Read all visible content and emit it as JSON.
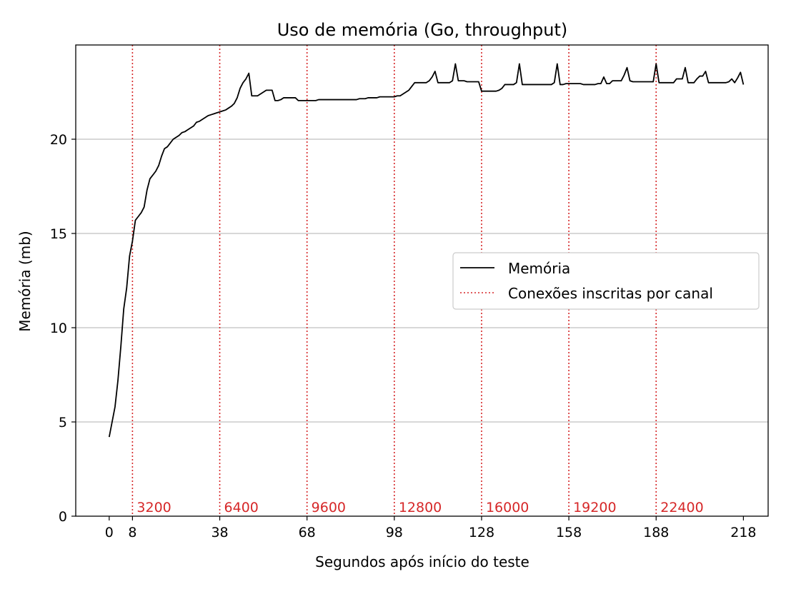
{
  "chart_data": {
    "type": "line",
    "title": "Uso de memória (Go, throughput)",
    "xlabel": "Segundos após início do teste",
    "ylabel": "Memória (mb)",
    "xlim": [
      -11.5,
      226.5
    ],
    "ylim": [
      0,
      25
    ],
    "x_ticks": [
      0,
      8,
      38,
      68,
      98,
      128,
      158,
      188,
      218
    ],
    "y_ticks": [
      0,
      5,
      10,
      15,
      20
    ],
    "grid": "horizontal",
    "legend_position": "center-right",
    "legend": [
      "Memória",
      "Conexões inscritas por canal"
    ],
    "colors": {
      "series": "#000000",
      "markers": "#d62728",
      "grid": "#b0b0b0"
    },
    "series": [
      {
        "name": "Memória",
        "x": [
          0,
          1,
          2,
          3,
          4,
          5,
          6,
          7,
          8,
          9,
          10,
          11,
          12,
          13,
          14,
          15,
          16,
          17,
          18,
          19,
          20,
          21,
          22,
          23,
          24,
          25,
          26,
          27,
          28,
          29,
          30,
          31,
          32,
          33,
          34,
          35,
          36,
          37,
          38,
          39,
          40,
          41,
          42,
          43,
          44,
          45,
          46,
          47,
          48,
          49,
          50,
          51,
          52,
          53,
          54,
          55,
          56,
          57,
          58,
          59,
          60,
          61,
          62,
          63,
          64,
          65,
          66,
          67,
          68,
          69,
          70,
          71,
          72,
          73,
          74,
          75,
          76,
          77,
          78,
          79,
          80,
          81,
          82,
          83,
          84,
          85,
          86,
          87,
          88,
          89,
          90,
          91,
          92,
          93,
          94,
          95,
          96,
          97,
          98,
          99,
          100,
          101,
          102,
          103,
          104,
          105,
          106,
          107,
          108,
          109,
          110,
          111,
          112,
          113,
          114,
          115,
          116,
          117,
          118,
          119,
          120,
          121,
          122,
          123,
          124,
          125,
          126,
          127,
          128,
          129,
          130,
          131,
          132,
          133,
          134,
          135,
          136,
          137,
          138,
          139,
          140,
          141,
          142,
          143,
          144,
          145,
          146,
          147,
          148,
          149,
          150,
          151,
          152,
          153,
          154,
          155,
          156,
          157,
          158,
          159,
          160,
          161,
          162,
          163,
          164,
          165,
          166,
          167,
          168,
          169,
          170,
          171,
          172,
          173,
          174,
          175,
          176,
          177,
          178,
          179,
          180,
          181,
          182,
          183,
          184,
          185,
          186,
          187,
          188,
          189,
          190,
          191,
          192,
          193,
          194,
          195,
          196,
          197,
          198,
          199,
          200,
          201,
          202,
          203,
          204,
          205,
          206,
          207,
          208,
          209,
          210,
          211,
          212,
          213,
          214,
          215,
          216,
          217,
          218
        ],
        "values": [
          4.2,
          5.0,
          5.8,
          7.2,
          9.0,
          11.0,
          12.1,
          13.8,
          14.6,
          15.7,
          15.9,
          16.1,
          16.4,
          17.3,
          17.9,
          18.1,
          18.3,
          18.6,
          19.1,
          19.5,
          19.6,
          19.8,
          20.0,
          20.1,
          20.2,
          20.35,
          20.4,
          20.5,
          20.6,
          20.7,
          20.9,
          20.95,
          21.05,
          21.15,
          21.25,
          21.3,
          21.35,
          21.4,
          21.45,
          21.5,
          21.55,
          21.65,
          21.75,
          21.9,
          22.2,
          22.7,
          23.0,
          23.2,
          23.5,
          22.3,
          22.3,
          22.3,
          22.4,
          22.5,
          22.6,
          22.6,
          22.6,
          22.05,
          22.05,
          22.1,
          22.2,
          22.2,
          22.2,
          22.2,
          22.2,
          22.05,
          22.05,
          22.05,
          22.05,
          22.05,
          22.05,
          22.05,
          22.1,
          22.1,
          22.1,
          22.1,
          22.1,
          22.1,
          22.1,
          22.1,
          22.1,
          22.1,
          22.1,
          22.1,
          22.1,
          22.1,
          22.15,
          22.15,
          22.15,
          22.2,
          22.2,
          22.2,
          22.2,
          22.25,
          22.25,
          22.25,
          22.25,
          22.25,
          22.25,
          22.3,
          22.3,
          22.4,
          22.5,
          22.6,
          22.8,
          23.0,
          23.0,
          23.0,
          23.0,
          23.0,
          23.1,
          23.3,
          23.6,
          23.0,
          23.0,
          23.0,
          23.0,
          23.0,
          23.1,
          24.0,
          23.1,
          23.1,
          23.1,
          23.05,
          23.05,
          23.05,
          23.05,
          23.05,
          22.55,
          22.55,
          22.55,
          22.55,
          22.55,
          22.55,
          22.6,
          22.7,
          22.9,
          22.9,
          22.9,
          22.9,
          23.0,
          24.0,
          22.9,
          22.9,
          22.9,
          22.9,
          22.9,
          22.9,
          22.9,
          22.9,
          22.9,
          22.9,
          22.9,
          23.0,
          24.0,
          22.9,
          22.9,
          22.95,
          22.95,
          22.95,
          22.95,
          22.95,
          22.95,
          22.9,
          22.9,
          22.9,
          22.9,
          22.9,
          22.95,
          22.95,
          23.3,
          22.95,
          22.95,
          23.1,
          23.1,
          23.1,
          23.1,
          23.4,
          23.8,
          23.1,
          23.05,
          23.05,
          23.05,
          23.05,
          23.05,
          23.05,
          23.05,
          23.05,
          24.0,
          23.0,
          23.0,
          23.0,
          23.0,
          23.0,
          23.0,
          23.2,
          23.2,
          23.2,
          23.8,
          23.0,
          23.0,
          23.0,
          23.2,
          23.35,
          23.35,
          23.6,
          23.0,
          23.0,
          23.0,
          23.0,
          23.0,
          23.0,
          23.0,
          23.05,
          23.2,
          23.0,
          23.25,
          23.55,
          22.9
        ]
      }
    ],
    "vlines": [
      {
        "x": 8,
        "label": "3200"
      },
      {
        "x": 38,
        "label": "6400"
      },
      {
        "x": 68,
        "label": "9600"
      },
      {
        "x": 98,
        "label": "12800"
      },
      {
        "x": 128,
        "label": "16000"
      },
      {
        "x": 158,
        "label": "19200"
      },
      {
        "x": 188,
        "label": "22400"
      }
    ]
  }
}
